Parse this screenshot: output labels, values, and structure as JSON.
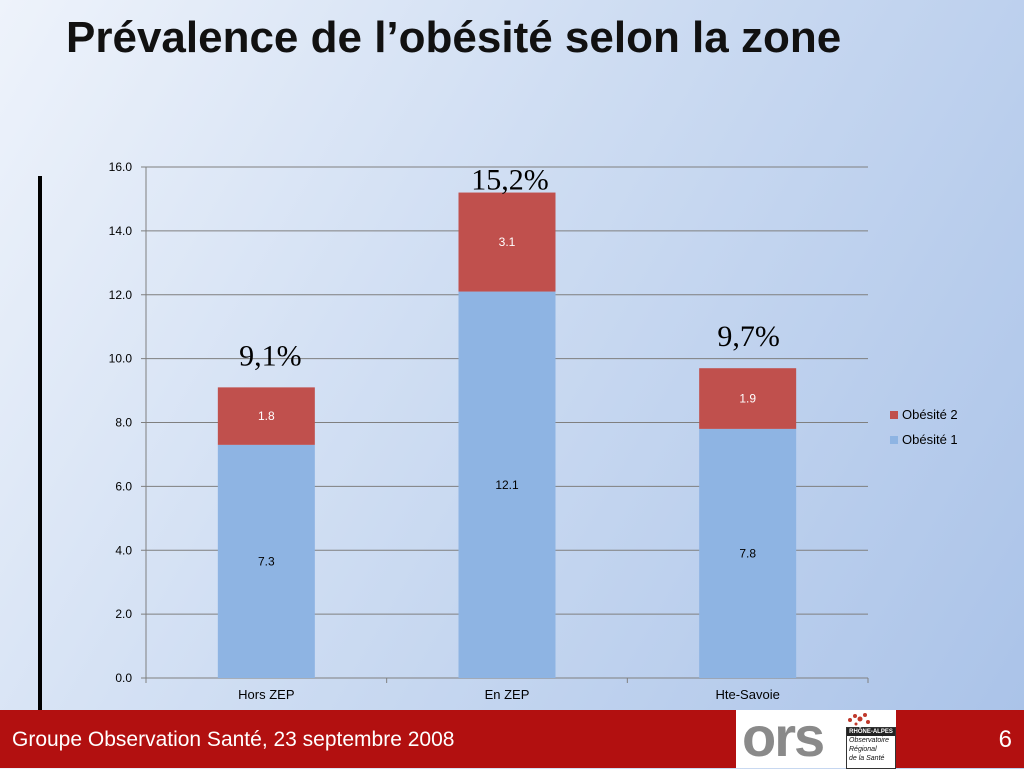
{
  "slide": {
    "title": "Prévalence de l’obésité selon la zone"
  },
  "chart_data": {
    "type": "bar",
    "stacked": true,
    "categories": [
      "Hors ZEP",
      "En ZEP",
      "Hte-Savoie"
    ],
    "series": [
      {
        "name": "Obésité 1",
        "values": [
          7.3,
          12.1,
          7.8
        ],
        "color": "#8eb4e3"
      },
      {
        "name": "Obésité 2",
        "values": [
          1.8,
          3.1,
          1.9
        ],
        "color": "#c0504d"
      }
    ],
    "data_labels": {
      "Obésité 1": [
        "7.3",
        "12.1",
        "7.8"
      ],
      "Obésité 2": [
        "1.8",
        "3.1",
        "1.9"
      ]
    },
    "total_annotations": [
      "9,1%",
      "15,2%",
      "9,7%"
    ],
    "ylim": [
      0,
      16
    ],
    "ytick_step": 2,
    "ytick_labels": [
      "0.0",
      "2.0",
      "4.0",
      "6.0",
      "8.0",
      "10.0",
      "12.0",
      "14.0",
      "16.0"
    ],
    "grid": true,
    "legend": [
      "Obésité 2",
      "Obésité 1"
    ],
    "legend_position": "right"
  },
  "footer": {
    "text": "Groupe Observation Santé, 23 septembre 2008",
    "page_number": "6"
  },
  "logo": {
    "word": "ors",
    "region": "RHÔNE-ALPES",
    "lines": [
      "Observatoire",
      "Régional",
      "de la Santé"
    ]
  },
  "colors": {
    "footer_bar": "#b21010",
    "series_1": "#8eb4e3",
    "series_2": "#c0504d"
  }
}
